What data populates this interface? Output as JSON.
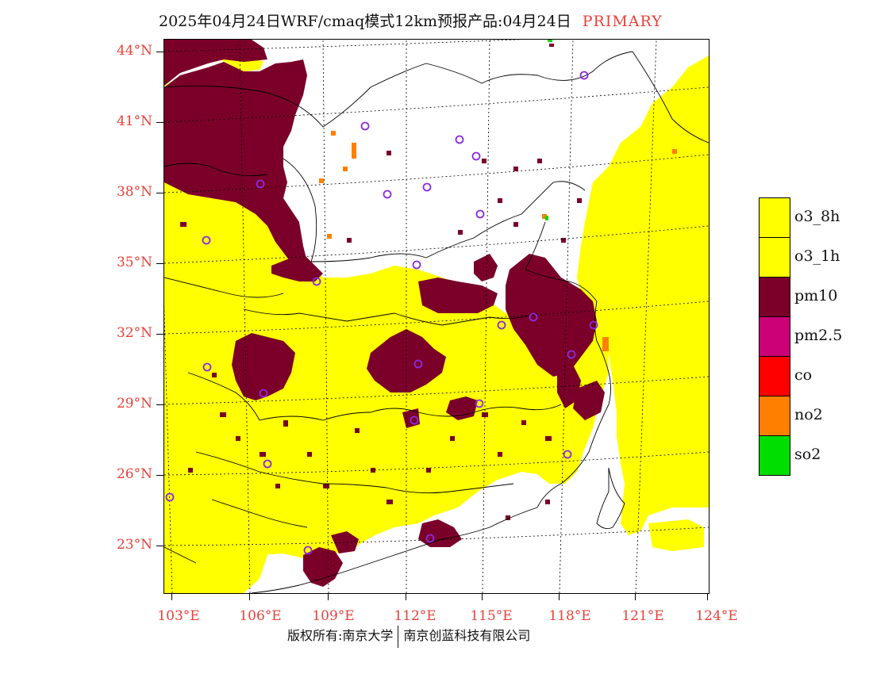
{
  "title": {
    "main": "2025年04月24日WRF/cmaq模式12km预报产品:04月24日",
    "tag": "PRIMARY",
    "tag_color": "#e8403a"
  },
  "axes": {
    "lat_labels": [
      "44°N",
      "41°N",
      "38°N",
      "35°N",
      "32°N",
      "29°N",
      "26°N",
      "23°N"
    ],
    "lon_labels": [
      "103°E",
      "106°E",
      "109°E",
      "112°E",
      "115°E",
      "118°E",
      "121°E",
      "124°E"
    ],
    "label_color": "#e8403a"
  },
  "legend": {
    "items": [
      {
        "label": "o3_8h",
        "color": "#ffff00"
      },
      {
        "label": "o3_1h",
        "color": "#ffff00"
      },
      {
        "label": "pm10",
        "color": "#7b0029"
      },
      {
        "label": "pm2.5",
        "color": "#cc0077"
      },
      {
        "label": "co",
        "color": "#ff0000"
      },
      {
        "label": "no2",
        "color": "#ff7f00"
      },
      {
        "label": "so2",
        "color": "#00dd00"
      }
    ]
  },
  "footer": {
    "left": "版权所有:南京大学",
    "right": "南京创蓝科技有限公司"
  },
  "map": {
    "colors": {
      "o3": "#ffff00",
      "pm10": "#7b0029",
      "no2": "#ff7f00",
      "so2": "#00dd00",
      "city_marker": "#8a2be2",
      "grid": "#000000",
      "boundary": "#000000"
    }
  }
}
